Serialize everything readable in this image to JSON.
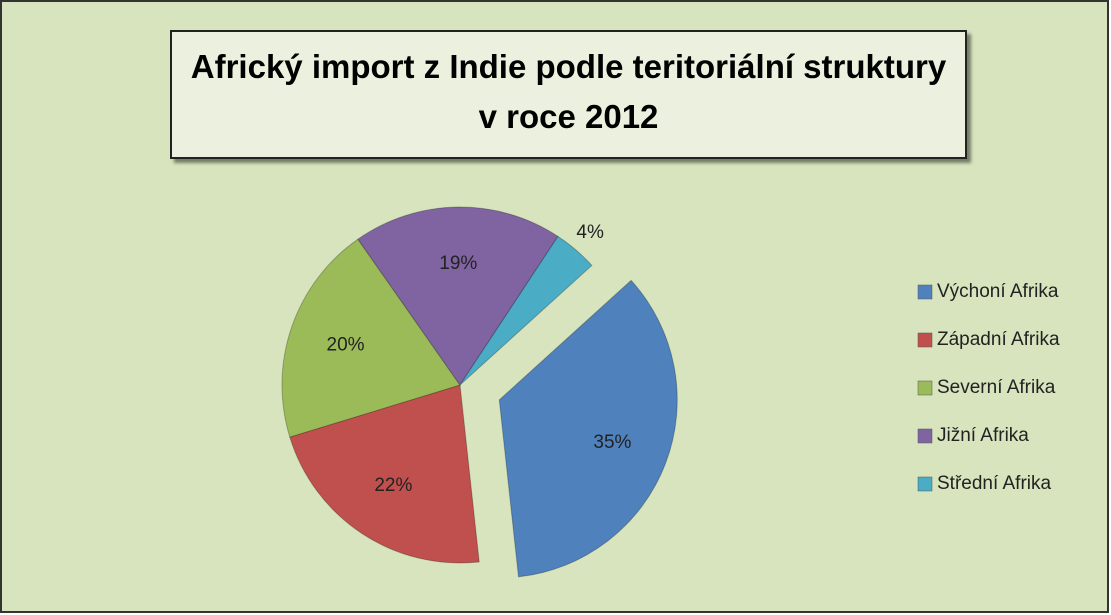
{
  "chart_data": {
    "type": "pie",
    "title": "Africký import z Indie podle teritoriální struktury v roce 2012",
    "categories": [
      "Výchoní Afrika",
      "Západní Afrika",
      "Severní Afrika",
      "Jižní Afrika",
      "Střední Afrika"
    ],
    "values": [
      35,
      22,
      20,
      19,
      4
    ],
    "value_labels": [
      "35%",
      "22%",
      "20%",
      "19%",
      "4%"
    ],
    "colors": [
      "#4f81bd",
      "#c0504d",
      "#9bbb59",
      "#8064a2",
      "#4bacc6"
    ],
    "legend": "right"
  }
}
